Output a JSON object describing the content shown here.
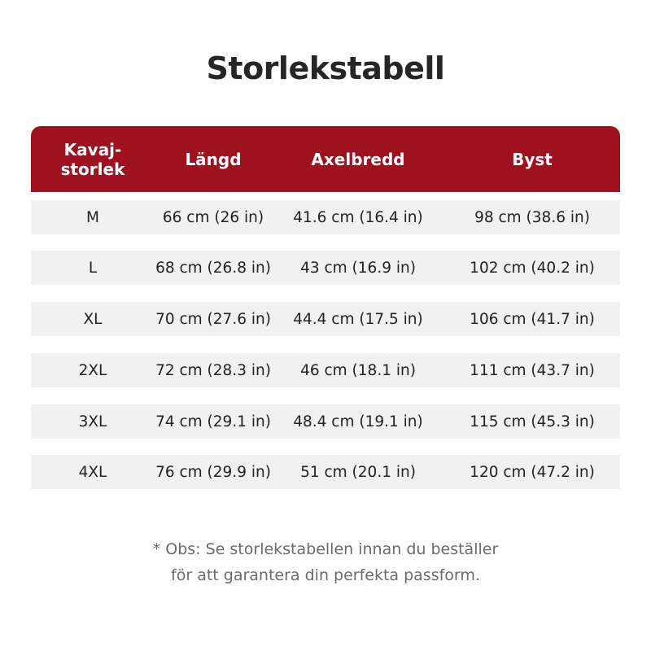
{
  "title": "Storlekstabell",
  "table": {
    "headers": {
      "size_line1": "Kavaj-",
      "size_line2": "storlek",
      "length": "Längd",
      "shoulder": "Axelbredd",
      "bust": "Byst"
    },
    "rows": [
      {
        "size": "M",
        "length": "66 cm (26 in)",
        "shoulder": "41.6 cm (16.4 in)",
        "bust": "98 cm (38.6 in)"
      },
      {
        "size": "L",
        "length": "68 cm (26.8 in)",
        "shoulder": "43 cm (16.9 in)",
        "bust": "102 cm (40.2 in)"
      },
      {
        "size": "XL",
        "length": "70 cm (27.6 in)",
        "shoulder": "44.4 cm (17.5 in)",
        "bust": "106 cm (41.7 in)"
      },
      {
        "size": "2XL",
        "length": "72 cm (28.3 in)",
        "shoulder": "46 cm (18.1 in)",
        "bust": "111 cm (43.7 in)"
      },
      {
        "size": "3XL",
        "length": "74 cm (29.1 in)",
        "shoulder": "48.4 cm (19.1 in)",
        "bust": "115 cm (45.3 in)"
      },
      {
        "size": "4XL",
        "length": "76 cm (29.9 in)",
        "shoulder": "51 cm (20.1 in)",
        "bust": "120 cm (47.2 in)"
      }
    ]
  },
  "note": {
    "line1": "* Obs: Se storlekstabellen innan du beställer",
    "line2": "för att garantera din perfekta passform."
  },
  "colors": {
    "header_bg": "#a0111f",
    "row_bg": "#f1f1f1",
    "note_text": "#6a6a6a"
  }
}
